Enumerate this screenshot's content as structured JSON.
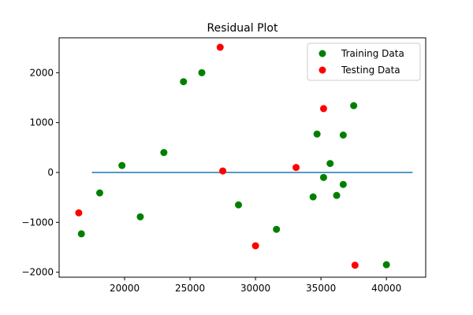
{
  "chart_data": {
    "type": "scatter",
    "title": "Residual Plot",
    "xlabel": "",
    "ylabel": "",
    "xlim": [
      15000,
      43000
    ],
    "ylim": [
      -2100,
      2700
    ],
    "x_ticks": [
      20000,
      25000,
      30000,
      35000,
      40000
    ],
    "y_ticks": [
      -2000,
      -1000,
      0,
      1000,
      2000
    ],
    "x_tick_labels": [
      "20000",
      "25000",
      "30000",
      "35000",
      "40000"
    ],
    "y_tick_labels": [
      "−2000",
      "−1000",
      "0",
      "1000",
      "2000"
    ],
    "grid": false,
    "legend_position": "top-right",
    "hline": {
      "y": 0,
      "xmin": 17500,
      "xmax": 42000,
      "color": "#1f77b4"
    },
    "series": [
      {
        "name": "Training Data",
        "color": "#008000",
        "points": [
          [
            16700,
            -1230
          ],
          [
            18100,
            -410
          ],
          [
            19800,
            140
          ],
          [
            21200,
            -890
          ],
          [
            23000,
            400
          ],
          [
            24500,
            1820
          ],
          [
            25900,
            2000
          ],
          [
            28700,
            -650
          ],
          [
            31600,
            -1140
          ],
          [
            34400,
            -490
          ],
          [
            34700,
            770
          ],
          [
            35200,
            -100
          ],
          [
            35700,
            180
          ],
          [
            36200,
            -460
          ],
          [
            36700,
            -240
          ],
          [
            36700,
            750
          ],
          [
            37500,
            1340
          ],
          [
            40000,
            -1850
          ]
        ]
      },
      {
        "name": "Testing Data",
        "color": "#ff0000",
        "points": [
          [
            16500,
            -810
          ],
          [
            27300,
            2510
          ],
          [
            27500,
            30
          ],
          [
            30000,
            -1470
          ],
          [
            33100,
            100
          ],
          [
            35200,
            1280
          ],
          [
            37600,
            -1860
          ]
        ]
      }
    ]
  }
}
